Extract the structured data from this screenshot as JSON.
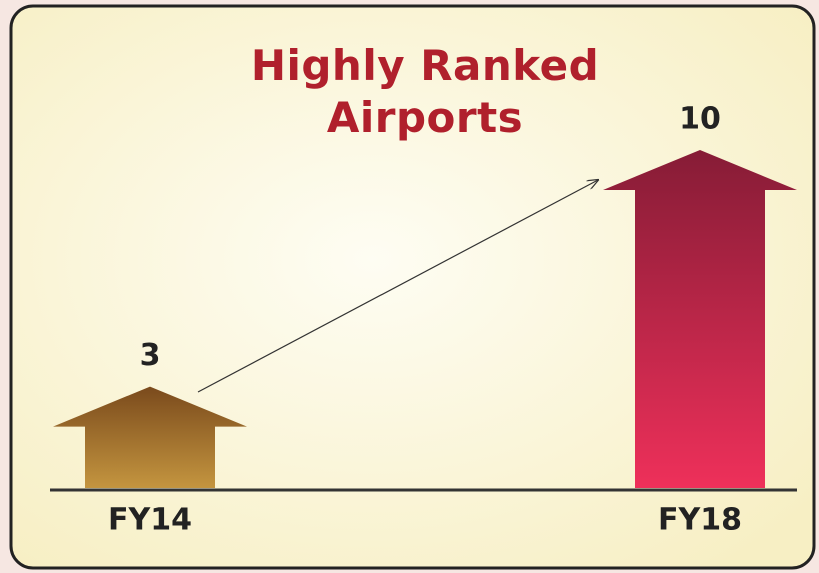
{
  "chart_data": {
    "type": "arrow-bar",
    "title": "Highly Ranked Airports",
    "categories": [
      "FY14",
      "FY18"
    ],
    "values": [
      3,
      10
    ],
    "colors": [
      [
        "#7a4a1c",
        "#c4953f"
      ],
      [
        "#861c36",
        "#ee305a"
      ]
    ]
  }
}
